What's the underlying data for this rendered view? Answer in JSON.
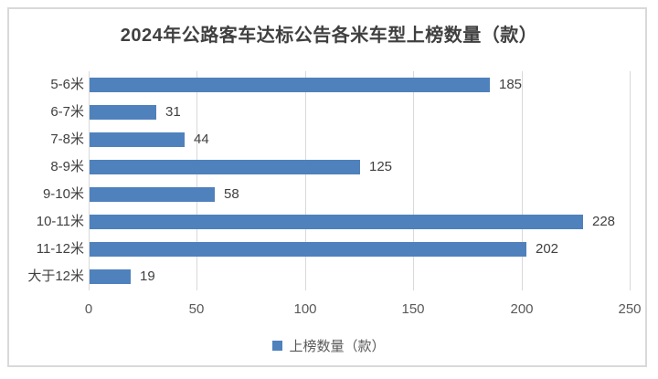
{
  "chart_data": {
    "type": "bar",
    "orientation": "horizontal",
    "title": "2024年公路客车达标公告各米车型上榜数量（款）",
    "categories": [
      "5-6米",
      "6-7米",
      "7-8米",
      "8-9米",
      "9-10米",
      "10-11米",
      "11-12米",
      "大于12米"
    ],
    "values": [
      185,
      31,
      44,
      125,
      58,
      228,
      202,
      19
    ],
    "xlim": [
      0,
      250
    ],
    "xticks": [
      0,
      50,
      100,
      150,
      200,
      250
    ],
    "grid": "vertical-gridlines-on",
    "data_labels": true,
    "legend_entries": [
      "上榜数量（款）"
    ],
    "legend_position": "bottom"
  },
  "colors": {
    "bar": "#4F81BD",
    "gridline": "#D9D9D9",
    "frame_border": "#D9D9D9",
    "title_text": "#404040",
    "category_text": "#404040",
    "value_text": "#404040",
    "tick_text": "#595959",
    "background": "#FFFFFF"
  }
}
